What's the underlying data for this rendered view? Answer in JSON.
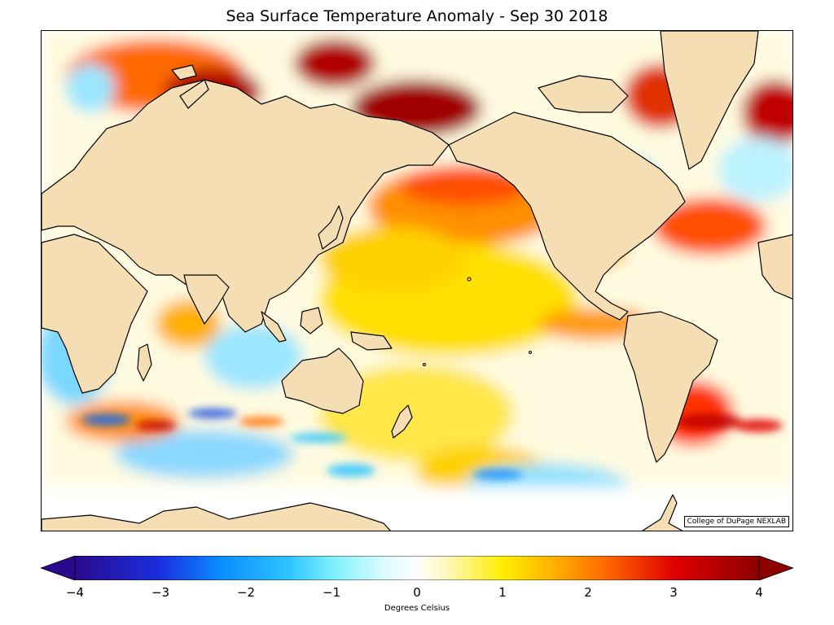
{
  "title": "Sea Surface Temperature Anomaly - Sep 30 2018",
  "credit": "College of DuPage NEXLAB",
  "colorbar": {
    "label": "Degrees Celsius",
    "range": [
      -4,
      4
    ],
    "ticks": [
      {
        "label": "−4",
        "value": -4
      },
      {
        "label": "−3",
        "value": -3
      },
      {
        "label": "−2",
        "value": -2
      },
      {
        "label": "−1",
        "value": -1
      },
      {
        "label": "0",
        "value": 0
      },
      {
        "label": "1",
        "value": 1
      },
      {
        "label": "2",
        "value": 2
      },
      {
        "label": "3",
        "value": 3
      },
      {
        "label": "4",
        "value": 4
      }
    ],
    "stops": [
      {
        "value": -4,
        "color": "#2a0a8c"
      },
      {
        "value": -3,
        "color": "#1a2fe0"
      },
      {
        "value": -2.3,
        "color": "#0a8cff"
      },
      {
        "value": -1.5,
        "color": "#2ec4ff"
      },
      {
        "value": -1,
        "color": "#7af0ff"
      },
      {
        "value": -0.4,
        "color": "#d8fbff"
      },
      {
        "value": 0,
        "color": "#ffffff"
      },
      {
        "value": 0.4,
        "color": "#fff6b0"
      },
      {
        "value": 1,
        "color": "#ffee00"
      },
      {
        "value": 1.6,
        "color": "#ffb000"
      },
      {
        "value": 2.2,
        "color": "#ff6a00"
      },
      {
        "value": 3,
        "color": "#e00000"
      },
      {
        "value": 4,
        "color": "#8c0000"
      }
    ]
  },
  "colors": {
    "land": "#f5deb3",
    "coast": "#000000",
    "ocean_background": "#ffffff"
  }
}
